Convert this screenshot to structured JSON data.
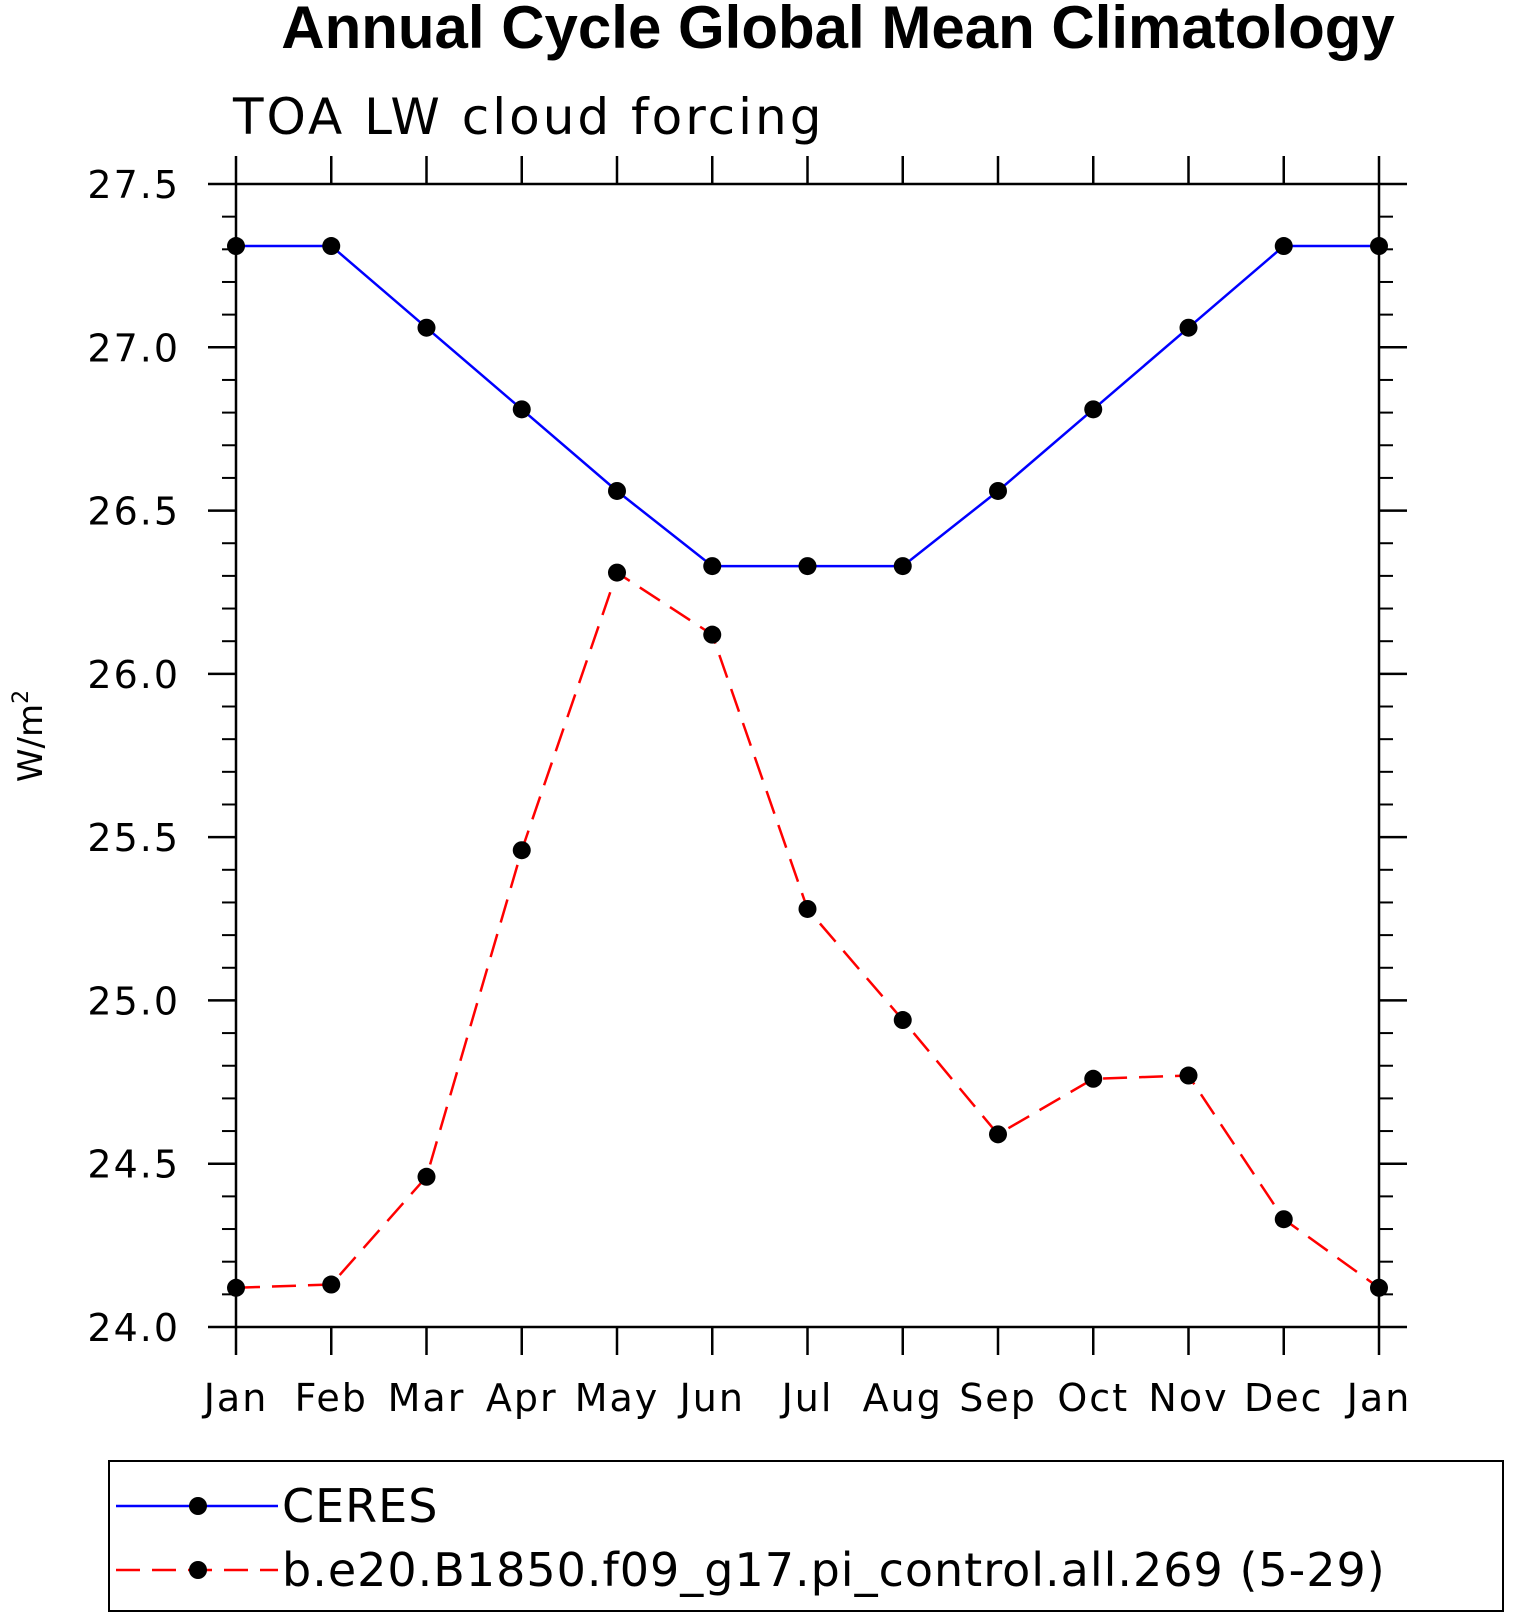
{
  "chart_data": {
    "type": "line",
    "title": "Annual Cycle Global Mean Climatology",
    "subtitle": "TOA LW cloud forcing",
    "xlabel": "",
    "ylabel": "W/m",
    "ylabel_superscript": "2",
    "categories": [
      "Jan",
      "Feb",
      "Mar",
      "Apr",
      "May",
      "Jun",
      "Jul",
      "Aug",
      "Sep",
      "Oct",
      "Nov",
      "Dec",
      "Jan"
    ],
    "ylim": [
      24.0,
      27.5
    ],
    "yticks": [
      "24.0",
      "24.5",
      "25.0",
      "25.5",
      "26.0",
      "26.5",
      "27.0",
      "27.5"
    ],
    "grid": false,
    "legend_position": "bottom",
    "series": [
      {
        "name": "CERES",
        "color": "#0000ff",
        "style": "solid",
        "values": [
          27.31,
          27.31,
          27.06,
          26.81,
          26.56,
          26.33,
          26.33,
          26.33,
          26.56,
          26.81,
          27.06,
          27.31,
          27.31
        ]
      },
      {
        "name": "b.e20.B1850.f09_g17.pi_control.all.269 (5-29)",
        "color": "#ff0000",
        "style": "dashed",
        "values": [
          24.12,
          24.13,
          24.46,
          25.46,
          26.31,
          26.12,
          25.28,
          24.94,
          24.59,
          24.76,
          24.77,
          24.33,
          24.12
        ]
      }
    ]
  }
}
